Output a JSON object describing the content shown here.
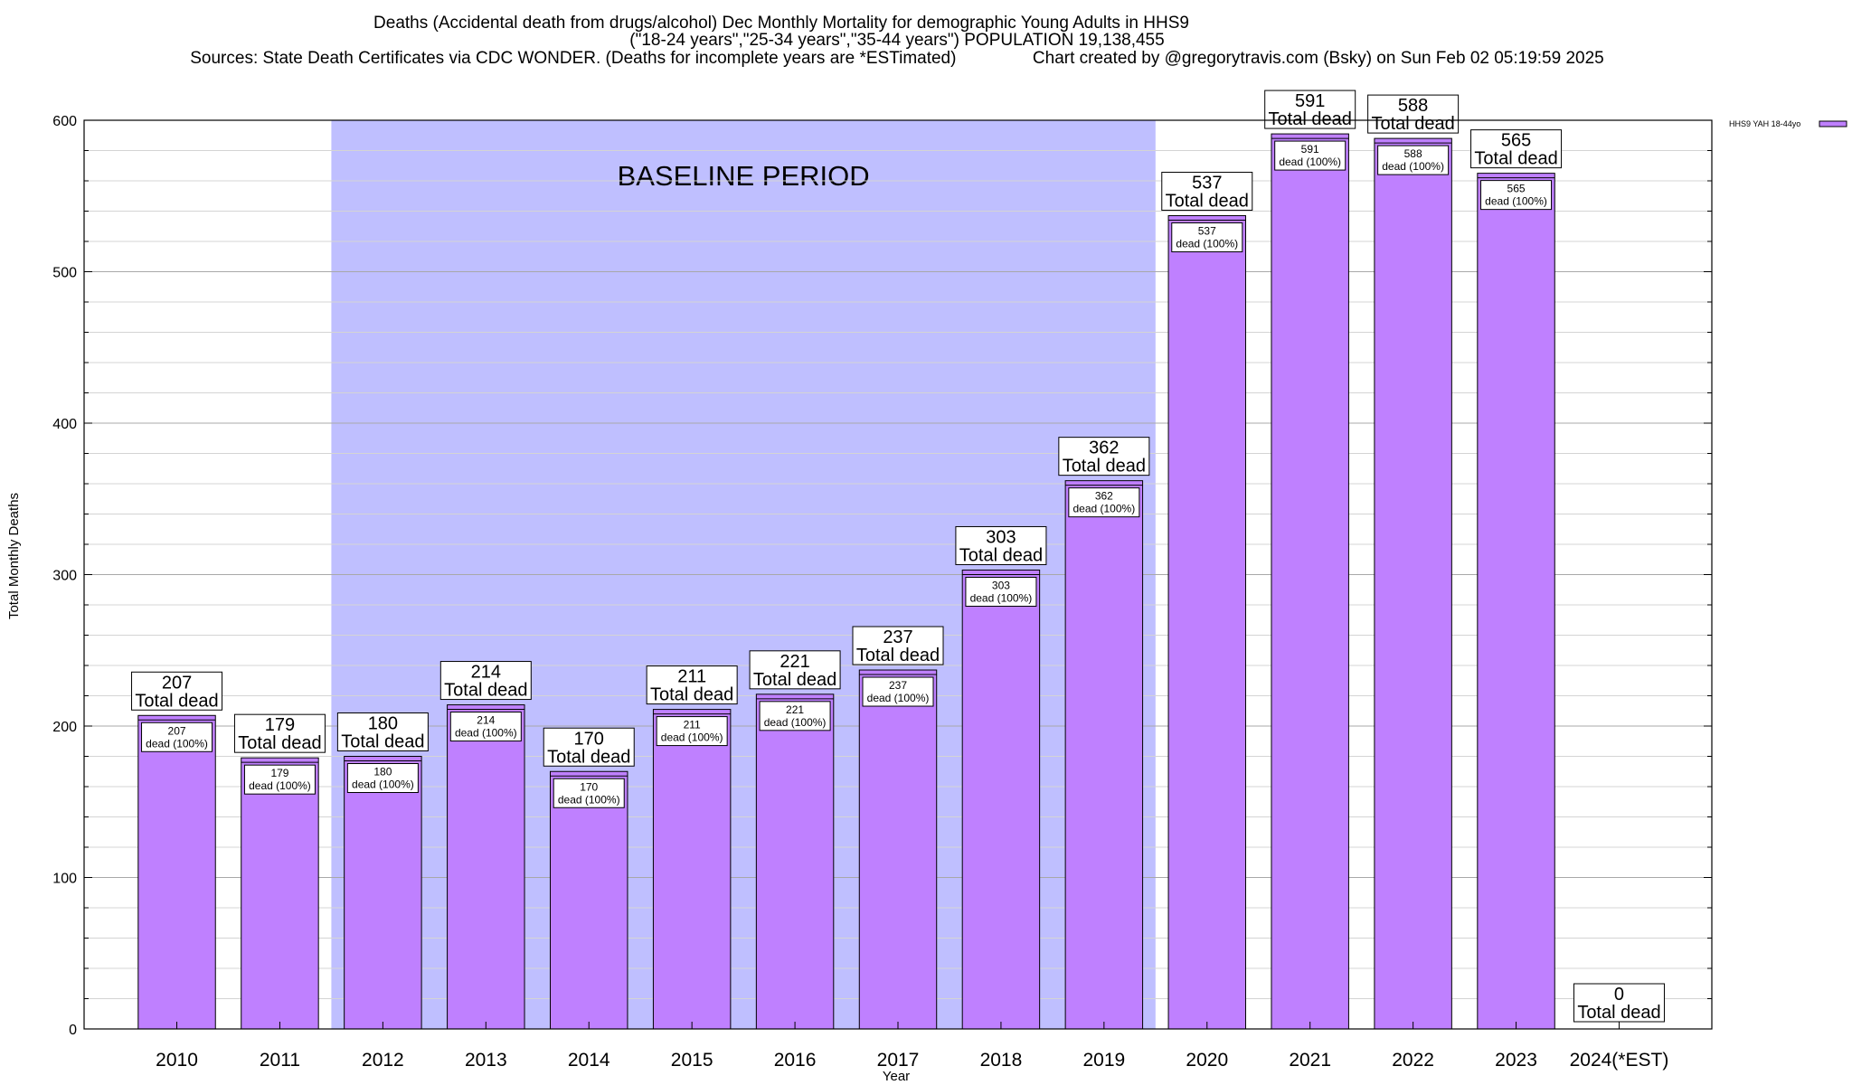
{
  "chart_data": {
    "type": "bar",
    "title": [
      "Deaths (Accidental death from drugs/alcohol) Dec Monthly Mortality for demographic Young Adults in HHS9",
      "(\"18-24 years\",\"25-34 years\",\"35-44 years\") POPULATION 19,138,455",
      "Sources: State Death Certificates via CDC WONDER. (Deaths for incomplete years are *ESTimated)                Chart created by @gregorytravis.com (Bsky) on Sun Feb 02 05:19:59 2025"
    ],
    "xlabel": "Year",
    "ylabel": "Total Monthly Deaths",
    "ylim": [
      0,
      600
    ],
    "yticks": [
      "0",
      "100",
      "200",
      "300",
      "400",
      "500",
      "600"
    ],
    "categories": [
      "2010",
      "2011",
      "2012",
      "2013",
      "2014",
      "2015",
      "2016",
      "2017",
      "2018",
      "2019",
      "2020",
      "2021",
      "2022",
      "2023",
      "2024(*EST)"
    ],
    "series": [
      {
        "name": "HHS9 YAH 18-44yo",
        "values": [
          207,
          179,
          180,
          214,
          170,
          211,
          221,
          237,
          303,
          362,
          537,
          591,
          588,
          565,
          0
        ],
        "color": "#bf80ff"
      }
    ],
    "total_label": "Total dead",
    "inner_label": "dead (100%)",
    "baseline": {
      "label": "BASELINE PERIOD",
      "start_year": "2012",
      "end_year": "2019",
      "color": "#bfbfff"
    },
    "grid": true,
    "legend_position": "top-right"
  }
}
